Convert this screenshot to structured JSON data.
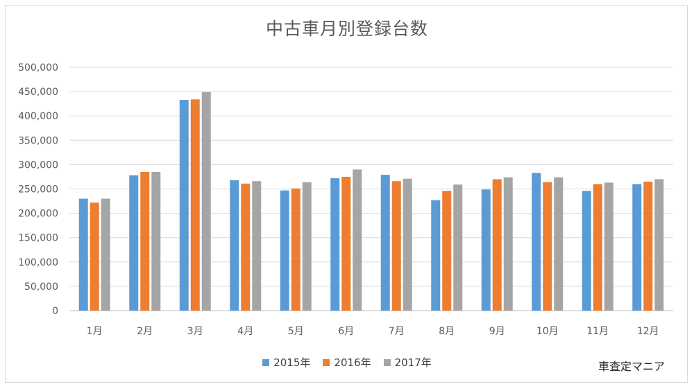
{
  "chart_data": {
    "type": "bar",
    "title": "中古車月別登録台数",
    "categories": [
      "1月",
      "2月",
      "3月",
      "4月",
      "5月",
      "6月",
      "7月",
      "8月",
      "9月",
      "10月",
      "11月",
      "12月"
    ],
    "series": [
      {
        "name": "2015年",
        "color": "#5b9bd5",
        "values": [
          230000,
          278000,
          433000,
          268000,
          247000,
          272000,
          279000,
          227000,
          249000,
          283000,
          246000,
          260000
        ]
      },
      {
        "name": "2016年",
        "color": "#ed7d31",
        "values": [
          222000,
          285000,
          434000,
          261000,
          251000,
          275000,
          266000,
          246000,
          270000,
          264000,
          260000,
          265000
        ]
      },
      {
        "name": "2017年",
        "color": "#a5a5a5",
        "values": [
          230000,
          285000,
          449000,
          266000,
          264000,
          290000,
          271000,
          259000,
          274000,
          274000,
          263000,
          270000
        ]
      }
    ],
    "y_ticks": [
      "0",
      "50,000",
      "100,000",
      "150,000",
      "200,000",
      "250,000",
      "300,000",
      "350,000",
      "400,000",
      "450,000",
      "500,000"
    ],
    "ylim": [
      0,
      500000
    ],
    "grid": true,
    "legend_position": "bottom"
  },
  "watermark": "車査定マニア"
}
